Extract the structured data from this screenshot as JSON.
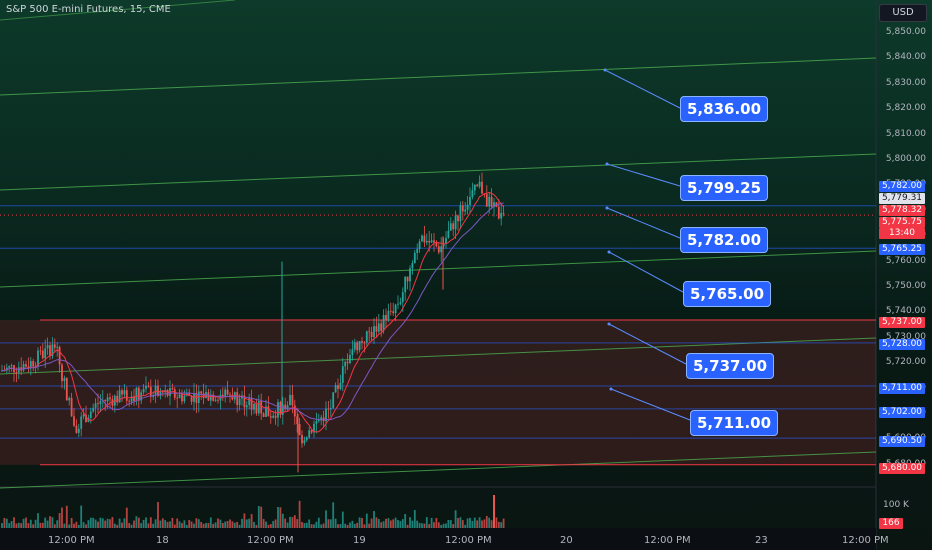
{
  "header": {
    "symbol_line": "S&P 500 E-mini Futures, 15, CME",
    "currency_button": "USD"
  },
  "colors": {
    "up": "#26a69a",
    "down": "#ef5350",
    "accent": "#2962ff",
    "support": "#f23645",
    "level": "#2962ff",
    "channel": "#4caf50"
  },
  "price_axis": {
    "labels": [
      "5,850.00",
      "5,840.00",
      "5,830.00",
      "5,820.00",
      "5,810.00",
      "5,800.00",
      "5,790.00",
      "5,780.00",
      "5,770.00",
      "5,760.00",
      "5,750.00",
      "5,740.00",
      "5,730.00",
      "5,720.00",
      "5,710.00",
      "5,700.00",
      "5,690.00",
      "5,680.00"
    ]
  },
  "price_tags": {
    "level_5782": "5,782.00",
    "high": "5,779.31",
    "last": "5,778.32",
    "last2": "5,775.75",
    "countdown": "13:40",
    "level_5765": "5,765.25",
    "level_5737": "5,737.00",
    "level_5728": "5,728.00",
    "level_5711": "5,711.00",
    "level_5702": "5,702.00",
    "level_5690": "5,690.50",
    "level_5680": "5,680.00"
  },
  "callouts": [
    "5,836.00",
    "5,799.25",
    "5,782.00",
    "5,765.00",
    "5,737.00",
    "5,711.00"
  ],
  "time_axis": [
    "12:00 PM",
    "18",
    "12:00 PM",
    "19",
    "12:00 PM",
    "20",
    "12:00 PM",
    "23",
    "12:00 PM"
  ],
  "volume_axis": {
    "label": "100 K",
    "current": "166"
  },
  "chart_data": {
    "type": "candlestick",
    "instrument": "S&P 500 E-mini Futures",
    "interval": "15",
    "exchange": "CME",
    "ylim": [
      5675,
      5858
    ],
    "levels": [
      5836,
      5799.25,
      5782,
      5765,
      5737,
      5711
    ],
    "support_zone": [
      5680,
      5737
    ],
    "last_price": 5778.32
  }
}
